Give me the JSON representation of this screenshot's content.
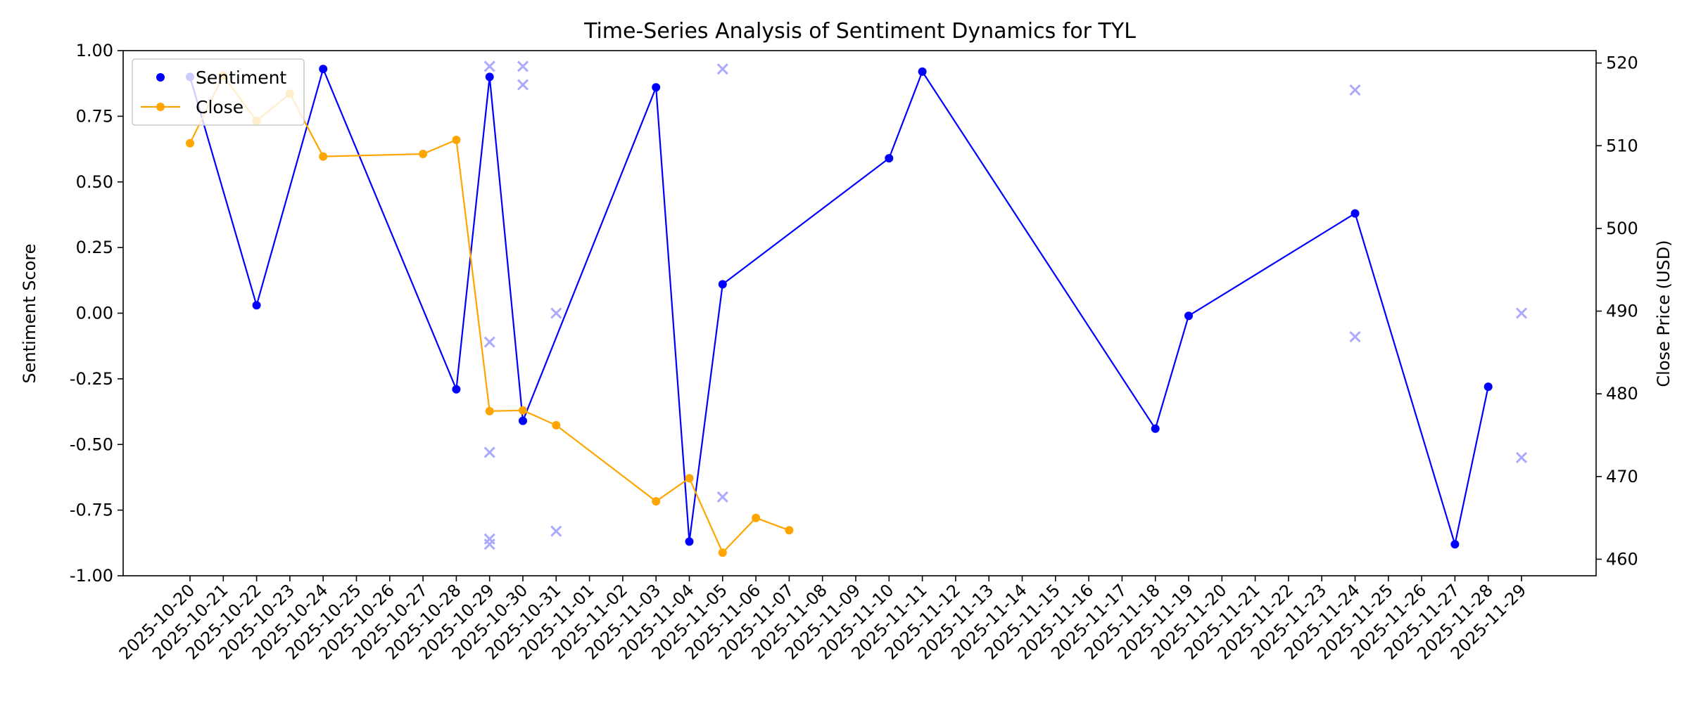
{
  "chart_data": {
    "type": "line",
    "title": "Time-Series Analysis of Sentiment Dynamics for TYL",
    "xlabel": "",
    "ylabel_left": "Sentiment Score",
    "ylabel_right": "Close Price (USD)",
    "ylim_left": [
      -1.0,
      1.0
    ],
    "ylim_right": [
      458.0,
      521.5
    ],
    "yticks_left": [
      "-1.00",
      "-0.75",
      "-0.50",
      "-0.25",
      "0.00",
      "0.25",
      "0.50",
      "0.75",
      "1.00"
    ],
    "yticks_right": [
      "460",
      "470",
      "480",
      "490",
      "500",
      "510",
      "520"
    ],
    "grid": false,
    "legend_position": "upper-left",
    "x_ticks": [
      "2025-10-20",
      "2025-10-21",
      "2025-10-22",
      "2025-10-23",
      "2025-10-24",
      "2025-10-25",
      "2025-10-26",
      "2025-10-27",
      "2025-10-28",
      "2025-10-29",
      "2025-10-30",
      "2025-10-31",
      "2025-11-01",
      "2025-11-02",
      "2025-11-03",
      "2025-11-04",
      "2025-11-05",
      "2025-11-06",
      "2025-11-07",
      "2025-11-08",
      "2025-11-09",
      "2025-11-10",
      "2025-11-11",
      "2025-11-12",
      "2025-11-13",
      "2025-11-14",
      "2025-11-15",
      "2025-11-16",
      "2025-11-17",
      "2025-11-18",
      "2025-11-19",
      "2025-11-20",
      "2025-11-21",
      "2025-11-22",
      "2025-11-23",
      "2025-11-24",
      "2025-11-25",
      "2025-11-26",
      "2025-11-27",
      "2025-11-28",
      "2025-11-29"
    ],
    "series": [
      {
        "name": "Sentiment",
        "axis": "left",
        "color": "#0000ff",
        "dates": [
          "2025-10-20",
          "2025-10-22",
          "2025-10-24",
          "2025-10-28",
          "2025-10-29",
          "2025-10-30",
          "2025-11-03",
          "2025-11-04",
          "2025-11-05",
          "2025-11-10",
          "2025-11-11",
          "2025-11-18",
          "2025-11-19",
          "2025-11-24",
          "2025-11-27",
          "2025-11-28"
        ],
        "values": [
          0.9,
          0.03,
          0.93,
          -0.29,
          0.9,
          -0.41,
          0.86,
          -0.87,
          0.11,
          0.59,
          0.92,
          -0.44,
          -0.01,
          0.38,
          -0.88,
          -0.28
        ]
      },
      {
        "name": "Close",
        "axis": "right",
        "color": "#ffa500",
        "dates": [
          "2025-10-20",
          "2025-10-21",
          "2025-10-22",
          "2025-10-23",
          "2025-10-24",
          "2025-10-27",
          "2025-10-28",
          "2025-10-29",
          "2025-10-30",
          "2025-10-31",
          "2025-11-03",
          "2025-11-04",
          "2025-11-05",
          "2025-11-06",
          "2025-11-07"
        ],
        "values": [
          510.3,
          518.5,
          513.0,
          516.3,
          508.7,
          509.0,
          510.7,
          477.9,
          478.0,
          476.2,
          467.0,
          469.8,
          460.8,
          465.0,
          463.5
        ]
      }
    ],
    "raw_sentiment_points": {
      "color": "#aaaaff",
      "dates": [
        "2025-10-29",
        "2025-10-29",
        "2025-10-29",
        "2025-10-29",
        "2025-10-29",
        "2025-10-30",
        "2025-10-30",
        "2025-10-31",
        "2025-10-31",
        "2025-11-05",
        "2025-11-05",
        "2025-11-24",
        "2025-11-24",
        "2025-11-29",
        "2025-11-29"
      ],
      "values": [
        0.94,
        -0.11,
        -0.53,
        -0.86,
        -0.88,
        0.94,
        0.87,
        0.0,
        -0.83,
        0.93,
        -0.7,
        0.85,
        -0.09,
        0.0,
        -0.55
      ]
    }
  }
}
